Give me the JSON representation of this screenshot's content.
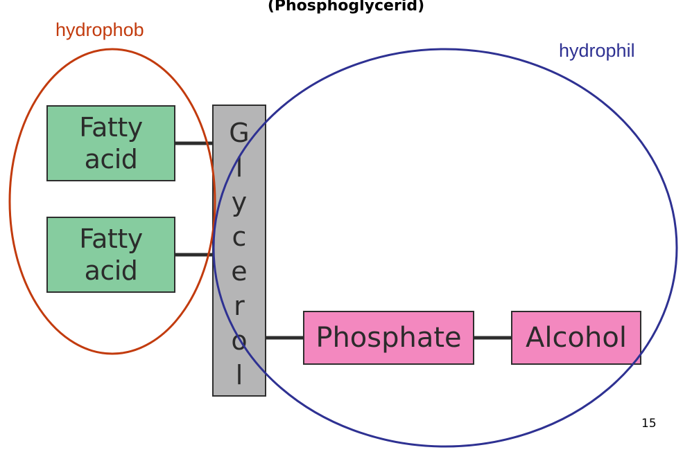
{
  "title": "(Phosphoglycerid)",
  "regions": {
    "hydrophobic": {
      "label": "hydrophob",
      "color": "#c23b0e"
    },
    "hydrophilic": {
      "label": "hydrophil",
      "color": "#2e3192"
    }
  },
  "components": {
    "fatty_acid_1": {
      "label": "Fatty\nacid",
      "color": "#86cc9f"
    },
    "fatty_acid_2": {
      "label": "Fatty\nacid",
      "color": "#86cc9f"
    },
    "glycerol": {
      "label": "Glycerol",
      "color": "#b5b5b6"
    },
    "phosphate": {
      "label": "Phosphate",
      "color": "#f388bf"
    },
    "alcohol": {
      "label": "Alcohol",
      "color": "#f388bf"
    }
  },
  "page_number": "15"
}
